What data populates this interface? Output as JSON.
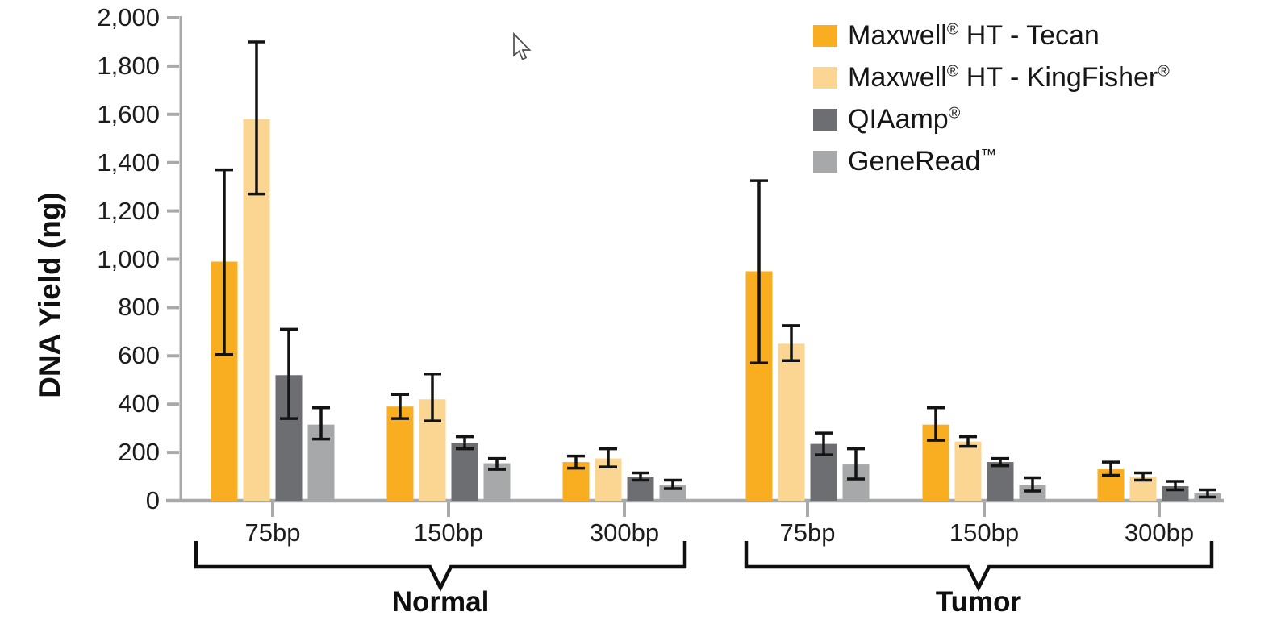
{
  "chart_data": {
    "type": "bar",
    "title": "",
    "ylabel": "DNA Yield (ng)",
    "ylim": [
      0,
      2000
    ],
    "ytick_values": [
      0,
      200,
      400,
      600,
      800,
      1000,
      1200,
      1400,
      1600,
      1800,
      2000
    ],
    "ytick_labels": [
      "0",
      "200",
      "400",
      "600",
      "800",
      "1,000",
      "1,200",
      "1,400",
      "1,600",
      "1,800",
      "2,000"
    ],
    "grid": false,
    "legend_position": "top-right",
    "sections": [
      "Normal",
      "Tumor"
    ],
    "group_labels": [
      "75bp",
      "150bp",
      "300bp",
      "75bp",
      "150bp",
      "300bp"
    ],
    "axis_color": "#A7A9AB",
    "error_bar_color": "#131313",
    "series": [
      {
        "name": "Maxwell® HT - Tecan",
        "color": "#F9AE22",
        "values": [
          990,
          390,
          160,
          950,
          315,
          130
        ],
        "err_low": [
          605,
          340,
          135,
          570,
          250,
          105
        ],
        "err_high": [
          1370,
          440,
          185,
          1325,
          385,
          160
        ]
      },
      {
        "name": "Maxwell® HT - KingFisher®",
        "color": "#FAD692",
        "values": [
          1580,
          420,
          175,
          650,
          245,
          100
        ],
        "err_low": [
          1270,
          330,
          140,
          580,
          225,
          85
        ],
        "err_high": [
          1900,
          525,
          215,
          725,
          265,
          115
        ]
      },
      {
        "name": "QIAamp®",
        "color": "#6D6E71",
        "values": [
          520,
          240,
          100,
          235,
          160,
          60
        ],
        "err_low": [
          340,
          215,
          85,
          190,
          145,
          45
        ],
        "err_high": [
          710,
          265,
          115,
          280,
          175,
          80
        ]
      },
      {
        "name": "GeneRead™",
        "color": "#A6A8AA",
        "values": [
          315,
          155,
          65,
          150,
          65,
          30
        ],
        "err_low": [
          255,
          130,
          50,
          90,
          40,
          15
        ],
        "err_high": [
          385,
          175,
          85,
          215,
          95,
          45
        ]
      }
    ]
  }
}
